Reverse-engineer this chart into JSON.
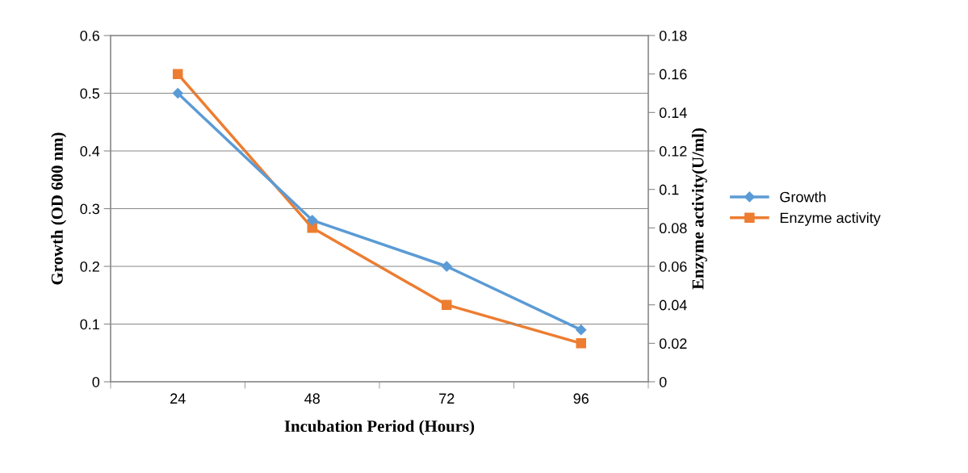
{
  "chart_data": {
    "type": "line",
    "xlabel": "Incubation Period (Hours)",
    "ylabel": "Growth (OD 600 nm)",
    "y2label": "Enzyme activity(U/ml)",
    "categories": [
      "24",
      "48",
      "72",
      "96"
    ],
    "series": [
      {
        "name": "Growth",
        "color": "#5b9bd5",
        "values": [
          0.5,
          0.28,
          0.2,
          0.09
        ],
        "marker": "diamond"
      },
      {
        "name": "Enzyme activity",
        "color": "#ed7d31",
        "values": [
          0.16,
          0.08,
          0.04,
          0.02
        ],
        "marker": "square",
        "axis": "y2"
      }
    ],
    "ylim": [
      0,
      0.6
    ],
    "yticks": [
      0,
      0.1,
      0.2,
      0.3,
      0.4,
      0.5,
      0.6
    ],
    "y2lim": [
      0,
      0.18
    ],
    "y2ticks": [
      0,
      0.02,
      0.04,
      0.06,
      0.08,
      0.1,
      0.12,
      0.14,
      0.16,
      0.18
    ],
    "grid": "y",
    "legend": "right",
    "line_style": "solid"
  }
}
